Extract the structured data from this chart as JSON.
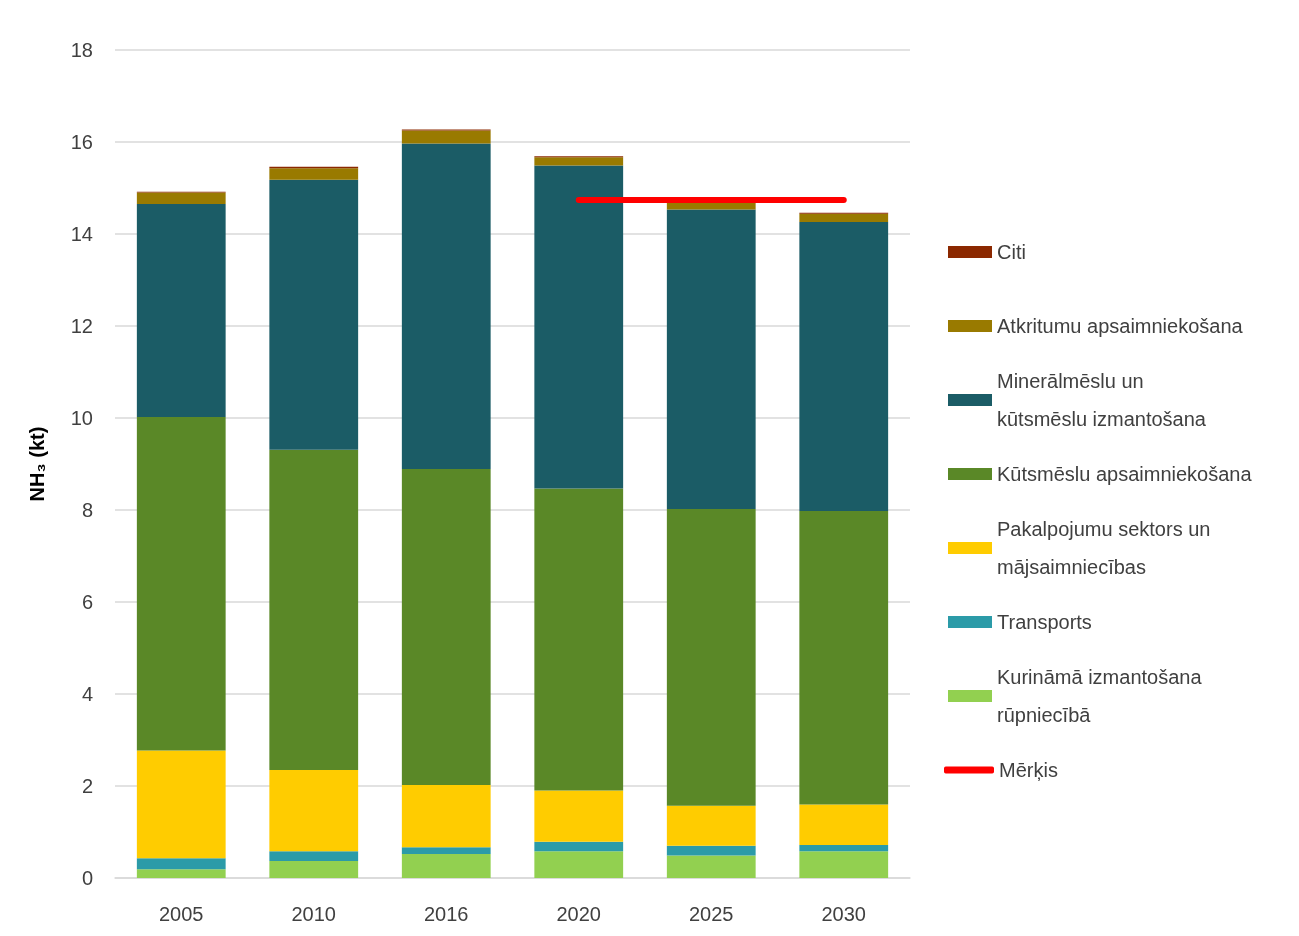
{
  "chart_data": {
    "type": "bar",
    "stacked": true,
    "ylabel": "NH₃ (kt)",
    "categories": [
      "2005",
      "2010",
      "2016",
      "2020",
      "2025",
      "2030"
    ],
    "series": [
      {
        "name": "Kurināmā izmantošana rūpniecībā",
        "color": "#92d050",
        "values": [
          0.19,
          0.37,
          0.52,
          0.58,
          0.49,
          0.58
        ]
      },
      {
        "name": "Transports",
        "color": "#2b9ba8",
        "values": [
          0.24,
          0.21,
          0.15,
          0.21,
          0.21,
          0.14
        ]
      },
      {
        "name": "Pakalpojumu sektors un mājsaimniecības",
        "color": "#ffcc00",
        "values": [
          2.34,
          1.77,
          1.35,
          1.11,
          0.87,
          0.88
        ]
      },
      {
        "name": "Kūtsmēslu apsaimniekošana",
        "color": "#5a8827",
        "values": [
          7.25,
          6.96,
          6.87,
          6.57,
          6.45,
          6.38
        ]
      },
      {
        "name": "Minerālmēslu un kūtsmēslu izmantošana",
        "color": "#1b5c66",
        "values": [
          4.63,
          5.87,
          7.08,
          7.02,
          6.51,
          6.28
        ]
      },
      {
        "name": "Atkritumu apsaimniekošana",
        "color": "#997a00",
        "values": [
          0.25,
          0.25,
          0.28,
          0.18,
          0.15,
          0.18
        ]
      },
      {
        "name": "Citi",
        "color": "#8b2800",
        "values": [
          0.02,
          0.03,
          0.02,
          0.02,
          0.02,
          0.02
        ]
      },
      {
        "name": "Mērķis",
        "type": "line",
        "color": "#ff0000",
        "values": [
          null,
          null,
          null,
          14.74,
          14.74,
          14.74
        ]
      }
    ],
    "ylim": [
      0,
      18
    ],
    "yticks": [
      0,
      2,
      4,
      6,
      8,
      10,
      12,
      14,
      16,
      18
    ],
    "grid": "y",
    "legend": "right",
    "marker": "none"
  }
}
